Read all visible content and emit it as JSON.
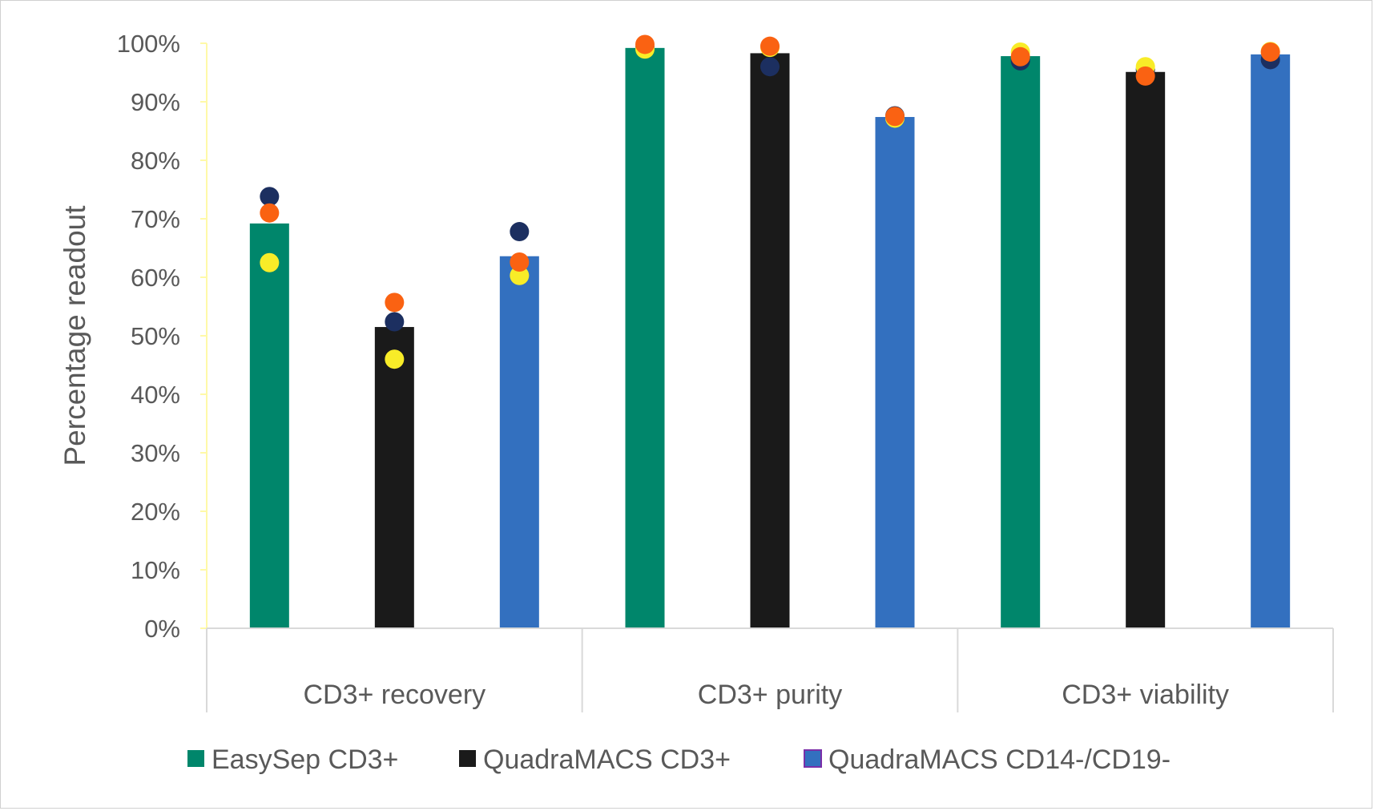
{
  "chart_data": {
    "type": "bar",
    "title": "",
    "xlabel": "",
    "ylabel": "Percentage readout",
    "ylim": [
      0,
      100
    ],
    "yticks": [
      0,
      10,
      20,
      30,
      40,
      50,
      60,
      70,
      80,
      90,
      100
    ],
    "ytick_format": "percent",
    "grid": false,
    "legend_position": "bottom",
    "categories": [
      "CD3+ recovery",
      "CD3+ purity",
      "CD3+ viability"
    ],
    "series": [
      {
        "name": "EasySep CD3+",
        "color": "#00866b",
        "values": [
          69.2,
          99.2,
          97.8
        ]
      },
      {
        "name": "QuadraMACS CD3+",
        "color": "#1a1a1a",
        "values": [
          51.5,
          98.3,
          95.1
        ]
      },
      {
        "name": "QuadraMACS CD14-/CD19-",
        "color": "#3370bf",
        "legend_border": "#7a2fa8",
        "values": [
          63.6,
          87.4,
          98.1
        ]
      }
    ],
    "replicates": [
      {
        "color": "#1c2f60",
        "values": [
          [
            73.8,
            52.4,
            67.8
          ],
          [
            99.2,
            96.0,
            87.6
          ],
          [
            97.0,
            95.5,
            97.2
          ]
        ]
      },
      {
        "color": "#f8ec28",
        "values": [
          [
            62.5,
            46.0,
            60.3
          ],
          [
            99.0,
            99.3,
            87.2
          ],
          [
            98.5,
            96.0,
            98.6
          ]
        ]
      },
      {
        "color": "#fa6212",
        "values": [
          [
            71.0,
            55.7,
            62.6
          ],
          [
            99.8,
            99.5,
            87.5
          ],
          [
            97.7,
            94.4,
            98.5
          ]
        ]
      }
    ]
  }
}
